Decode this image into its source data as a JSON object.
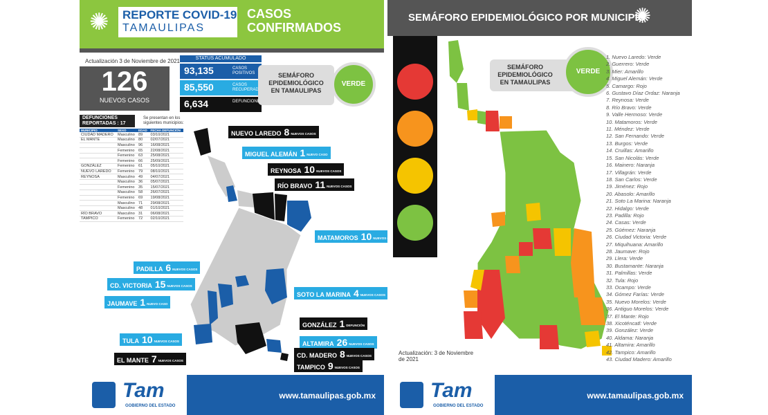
{
  "left": {
    "title1": "REPORTE COVID-19",
    "title2": "TAMAULIPAS",
    "casos": "CASOS CONFIRMADOS",
    "updated": "Actualización 3 de Noviembre de 2021",
    "new_cases": "126",
    "new_cases_label": "NUEVOS CASOS",
    "status_header": "STATUS ACUMULADO",
    "stats": [
      {
        "value": "93,135",
        "label": "CASOS POSITIVOS",
        "color": "#1b5ea8"
      },
      {
        "value": "85,550",
        "label": "CASOS RECUPERADOS",
        "color": "#29abe2"
      },
      {
        "value": "6,634",
        "label": "DEFUNCIONES",
        "color": "#111111"
      }
    ],
    "semaforo_label": "SEMÁFORO EPIDEMIOLÓGICO EN TAMAULIPAS",
    "semaforo_value": "VERDE",
    "def_header": "DEFUNCIONES REPORTADAS : 17",
    "def_note": "Se presentan en los siguientes municipios:",
    "def_cols": [
      "MUNICIPIO",
      "SEXO",
      "EDAD",
      "FECHA DEFUNCIÓN"
    ],
    "def_rows": [
      [
        "CIUDAD MADERO",
        "Masculino",
        "89",
        "03/10/2021"
      ],
      [
        "EL MANTE",
        "Masculino",
        "80",
        "02/07/2021"
      ],
      [
        "",
        "Masculino",
        "96",
        "16/08/2021"
      ],
      [
        "",
        "Femenino",
        "65",
        "22/08/2021"
      ],
      [
        "",
        "Femenino",
        "63",
        "25/08/2021"
      ],
      [
        "",
        "Femenino",
        "66",
        "25/09/2021"
      ],
      [
        "GONZÁLEZ",
        "Femenino",
        "61",
        "05/10/2021"
      ],
      [
        "NUEVO LAREDO",
        "Femenino",
        "79",
        "08/10/2021"
      ],
      [
        "REYNOSA",
        "Masculino",
        "49",
        "04/07/2021"
      ],
      [
        "",
        "Masculino",
        "36",
        "05/07/2021"
      ],
      [
        "",
        "Femenino",
        "35",
        "15/07/2021"
      ],
      [
        "",
        "Masculino",
        "58",
        "26/07/2021"
      ],
      [
        "",
        "Femenino",
        "69",
        "19/08/2021"
      ],
      [
        "",
        "Masculino",
        "71",
        "29/08/2021"
      ],
      [
        "",
        "Masculino",
        "48",
        "01/10/2021"
      ],
      [
        "RÍO BRAVO",
        "Masculino",
        "31",
        "06/08/2021"
      ],
      [
        "TAMPICO",
        "Femenino",
        "72",
        "02/10/2021"
      ]
    ],
    "labels": [
      {
        "name": "NUEVO LAREDO",
        "num": "8",
        "sub": "NUEVOS CASOS",
        "style": "dark"
      },
      {
        "name": "MIGUEL ALEMÁN",
        "num": "1",
        "sub": "NUEVO CASO",
        "style": "blue"
      },
      {
        "name": "REYNOSA",
        "num": "10",
        "sub": "NUEVOS CASOS",
        "style": "dark"
      },
      {
        "name": "RÍO BRAVO",
        "num": "11",
        "sub": "NUEVOS CASOS",
        "style": "dark"
      },
      {
        "name": "MATAMOROS",
        "num": "10",
        "sub": "NUEVOS CASOS",
        "style": "blue"
      },
      {
        "name": "PADILLA",
        "num": "6",
        "sub": "NUEVOS CASOS",
        "style": "blue"
      },
      {
        "name": "CD. VICTORIA",
        "num": "15",
        "sub": "NUEVOS CASOS",
        "style": "blue"
      },
      {
        "name": "JAUMAVE",
        "num": "1",
        "sub": "NUEVO CASO",
        "style": "blue"
      },
      {
        "name": "SOTO LA MARINA",
        "num": "4",
        "sub": "NUEVOS CASOS",
        "style": "blue"
      },
      {
        "name": "GONZÁLEZ",
        "num": "1",
        "sub": "DEFUNCIÓN",
        "style": "dark"
      },
      {
        "name": "TULA",
        "num": "10",
        "sub": "NUEVOS CASOS",
        "style": "blue"
      },
      {
        "name": "ALTAMIRA",
        "num": "26",
        "sub": "NUEVOS CASOS",
        "style": "blue"
      },
      {
        "name": "CD. MADERO",
        "num": "8",
        "sub": "NUEVOS CASOS",
        "style": "dark"
      },
      {
        "name": "EL MANTE",
        "num": "7",
        "sub": "NUEVOS CASOS",
        "style": "dark"
      },
      {
        "name": "TAMPICO",
        "num": "9",
        "sub": "NUEVOS CASOS",
        "style": "dark"
      }
    ],
    "brand": "Tam",
    "brand_sub": "GOBIERNO DEL ESTADO",
    "url": "www.tamaulipas.gob.mx"
  },
  "right": {
    "title": "SEMÁFORO EPIDEMIOLÓGICO POR MUNICIPIO",
    "semaforo_label": "SEMÁFORO EPIDEMIOLÓGICO EN TAMAULIPAS",
    "semaforo_value": "VERDE",
    "updated": "Actualización: 3 de Noviembre de 2021",
    "lights": [
      "#e53935",
      "#f7941d",
      "#f5c400",
      "#7dc242"
    ],
    "municipios": [
      "1. Nuevo Laredo: Verde",
      "2. Guerrero: Verde",
      "3. Mier: Amarillo",
      "4. Miguel Alemán: Verde",
      "5. Camargo: Rojo",
      "6. Gustavo Díaz Ordaz: Naranja",
      "7. Reynosa: Verde",
      "8. Río Bravo: Verde",
      "9. Valle Hermoso: Verde",
      "10. Matamoros: Verde",
      "11. Méndez: Verde",
      "12. San Fernando: Verde",
      "13. Burgos: Verde",
      "14. Cruillas: Amarillo",
      "15. San Nicolás: Verde",
      "16. Mainero: Naranja",
      "17. Villagrán: Verde",
      "18. San Carlos: Verde",
      "19. Jiménez: Rojo",
      "20. Abasolo: Amarillo",
      "21. Soto La Marina: Naranja",
      "22. Hidalgo: Verde",
      "23. Padilla: Rojo",
      "24. Casas: Verde",
      "25. Güémez: Naranja",
      "26. Ciudad Victoria: Verde",
      "27. Miquihuana: Amarillo",
      "28. Jaumave: Rojo",
      "29. Llera: Verde",
      "30. Bustamante: Naranja",
      "31. Palmillas: Verde",
      "32. Tula: Rojo",
      "33. Ocampo: Verde",
      "34. Gómez Farías: Verde",
      "35. Nuevo Morelos: Verde",
      "36. Antiguo Morelos: Verde",
      "37. El Mante: Rojo",
      "38. Xicoténcatl: Verde",
      "39. González: Verde",
      "40. Aldama: Naranja",
      "41. Altamira: Amarillo",
      "42. Tampico: Amarillo",
      "43. Ciudad Madero: Amarillo"
    ],
    "brand": "Tam",
    "brand_sub": "GOBIERNO DEL ESTADO",
    "url": "www.tamaulipas.gob.mx"
  },
  "colors": {
    "green": "#7dc242",
    "blue": "#1b5ea8",
    "light_blue": "#29abe2",
    "orange": "#f7941d",
    "yellow": "#f5c400",
    "red": "#e53935",
    "gray": "#555555"
  }
}
